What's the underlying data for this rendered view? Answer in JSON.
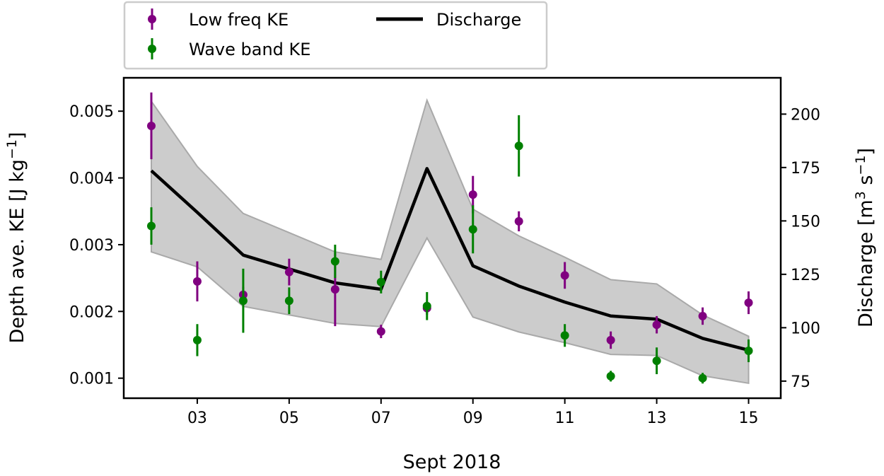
{
  "chart_data": {
    "type": "line",
    "xlabel": "Sept 2018",
    "ylabel_left": "Depth ave. KE [J kg",
    "ylabel_left_sup": "−1",
    "ylabel_left_end": "]",
    "ylabel_right": "Discharge [m",
    "ylabel_right_sup1": "3",
    "ylabel_right_mid": " s",
    "ylabel_right_sup2": "−1",
    "ylabel_right_end": "]",
    "x": [
      2,
      3,
      4,
      5,
      6,
      7,
      8,
      9,
      10,
      11,
      12,
      13,
      14,
      15
    ],
    "xlim": [
      1.4,
      15.7
    ],
    "xticks": [
      3,
      5,
      7,
      9,
      11,
      13,
      15
    ],
    "xtick_labels": [
      "03",
      "05",
      "07",
      "09",
      "11",
      "13",
      "15"
    ],
    "ylim_left": [
      0.0007,
      0.0055
    ],
    "yticks_left": [
      0.001,
      0.002,
      0.003,
      0.004,
      0.005
    ],
    "ytick_labels_left": [
      "0.001",
      "0.002",
      "0.003",
      "0.004",
      "0.005"
    ],
    "ylim_right": [
      67,
      217
    ],
    "yticks_right": [
      75,
      100,
      125,
      150,
      175,
      200
    ],
    "ytick_labels_right": [
      "75",
      "100",
      "125",
      "150",
      "175",
      "200"
    ],
    "legend_position": "above plot, upper-left",
    "series": [
      {
        "name": "Low freq KE",
        "kind": "errorbar",
        "axis": "left",
        "color": "#800080",
        "values": [
          0.00478,
          0.00245,
          0.00225,
          0.00259,
          0.00233,
          0.0017,
          0.00205,
          0.00375,
          0.00335,
          0.00254,
          0.00157,
          0.0018,
          0.00193,
          0.00213
        ],
        "errors": [
          0.0005,
          0.0003,
          0.00012,
          0.0002,
          0.00055,
          0.0001,
          0.0001,
          0.00028,
          0.00015,
          0.0002,
          0.00013,
          0.00013,
          0.00013,
          0.00017
        ]
      },
      {
        "name": "Wave band KE",
        "kind": "errorbar",
        "axis": "left",
        "color": "#008000",
        "values": [
          0.00328,
          0.00157,
          0.00216,
          0.00216,
          0.00275,
          0.00244,
          0.00208,
          0.00323,
          0.00448,
          0.00164,
          0.00103,
          0.00126,
          0.001,
          0.00141
        ],
        "errors": [
          0.00028,
          0.00024,
          0.00048,
          0.0002,
          0.00025,
          0.00017,
          0.00021,
          0.00036,
          0.00046,
          0.00017,
          8e-05,
          0.0002,
          8e-05,
          0.00017
        ]
      },
      {
        "name": "Discharge",
        "kind": "line",
        "axis": "right",
        "color": "#000000",
        "values": [
          173.5,
          154,
          134,
          127.5,
          121,
          118,
          174.5,
          129,
          119.5,
          112,
          105.5,
          104,
          95,
          89.5
        ],
        "band_upper": [
          206,
          175.5,
          153.5,
          144.5,
          135.5,
          132,
          206.5,
          155.5,
          143,
          133,
          122.5,
          120.5,
          106,
          96
        ],
        "band_lower": [
          135.5,
          128.5,
          110,
          106,
          102,
          100.5,
          142,
          105,
          98,
          93,
          87.5,
          87,
          77.5,
          74
        ]
      }
    ]
  }
}
